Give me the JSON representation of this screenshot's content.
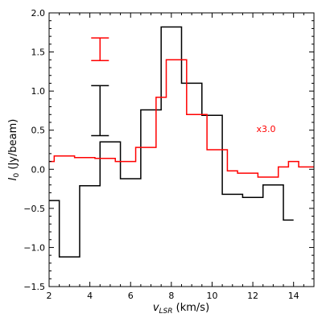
{
  "chart_data": {
    "type": "line",
    "drawstyle": "steps-mid",
    "title": "",
    "xlabel": {
      "main": "v",
      "sub": "LSR",
      "unit": " (km/s)"
    },
    "ylabel": {
      "main": "I",
      "sub": "0",
      "unit": " (Jy/beam)"
    },
    "xlim": [
      2,
      15
    ],
    "ylim": [
      -1.5,
      2.0
    ],
    "xticks": [
      2,
      4,
      6,
      8,
      10,
      12,
      14
    ],
    "xtick_labels": [
      "2",
      "4",
      "6",
      "8",
      "10",
      "12",
      "14"
    ],
    "yticks": [
      -1.5,
      -1.0,
      -0.5,
      0.0,
      0.5,
      1.0,
      1.5,
      2.0
    ],
    "ytick_labels": [
      "−1.5",
      "−1.0",
      "−0.5",
      "0.0",
      "0.5",
      "1.0",
      "1.5",
      "2.0"
    ],
    "x_minor_step": 0.5,
    "y_minor_step": 0.1,
    "grid": false,
    "series": [
      {
        "color": "#000000",
        "x": [
          2,
          3,
          4,
          5,
          6,
          7,
          8,
          9,
          10,
          11,
          12,
          13,
          14
        ],
        "values": [
          -0.4,
          -1.12,
          -0.21,
          0.35,
          -0.12,
          0.76,
          1.82,
          1.1,
          0.69,
          -0.32,
          -0.36,
          -0.2,
          -0.65
        ]
      },
      {
        "color": "#ff0000",
        "x": [
          2,
          2.5,
          3,
          3.5,
          4,
          4.5,
          5,
          5.5,
          6,
          6.5,
          7,
          7.5,
          8,
          8.5,
          9,
          9.5,
          10,
          10.5,
          11,
          11.5,
          12,
          12.5,
          13,
          13.5,
          14,
          14.5,
          15
        ],
        "values": [
          0.1,
          0.17,
          0.17,
          0.15,
          0.15,
          0.14,
          0.14,
          0.1,
          0.1,
          0.28,
          0.28,
          0.92,
          1.4,
          1.4,
          0.7,
          0.7,
          0.25,
          0.25,
          -0.02,
          -0.05,
          -0.05,
          -0.1,
          -0.1,
          0.03,
          0.1,
          0.03,
          0.03
        ]
      }
    ],
    "error_bars": [
      {
        "color": "#ff0000",
        "x": 4.5,
        "low": 1.39,
        "high": 1.68
      },
      {
        "color": "#000000",
        "x": 4.5,
        "low": 0.43,
        "high": 1.07
      }
    ],
    "annotations": [
      {
        "text": "x3.0",
        "x": 12.65,
        "y": 0.52,
        "color": "#ff0000"
      }
    ]
  }
}
